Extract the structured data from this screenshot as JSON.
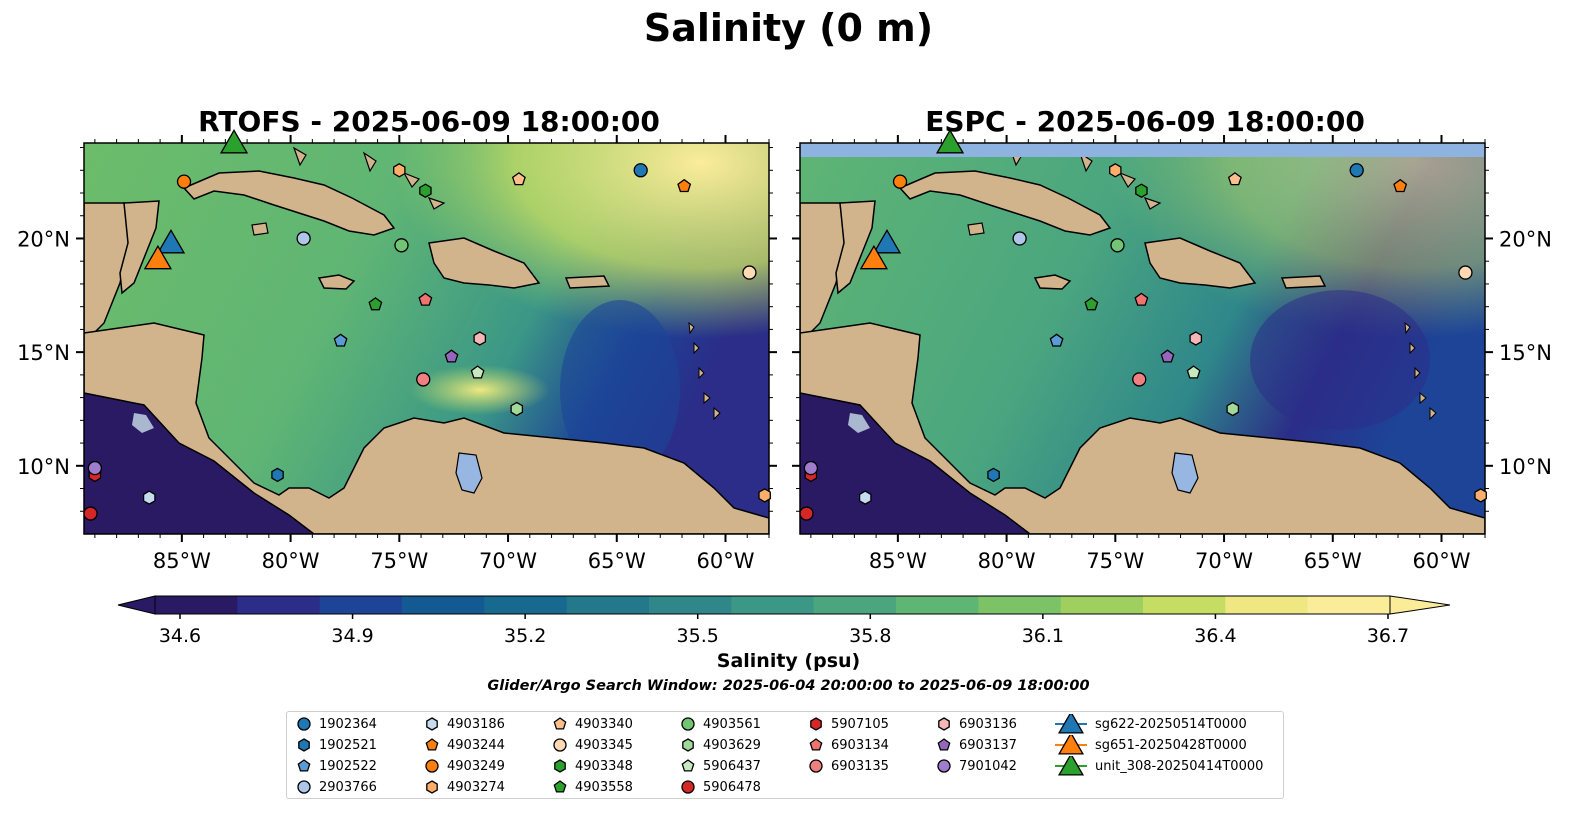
{
  "figure": {
    "suptitle": "Salinity (0 m)",
    "panels": [
      {
        "title": "RTOFS - 2025-06-09 18:00:00",
        "model": "RTOFS"
      },
      {
        "title": "ESPC - 2025-06-09 18:00:00",
        "model": "ESPC"
      }
    ],
    "lon_ticks": [
      "85°W",
      "80°W",
      "75°W",
      "70°W",
      "65°W",
      "60°W"
    ],
    "lat_ticks": [
      "20°N",
      "15°N",
      "10°N"
    ],
    "colorbar": {
      "label": "Salinity (psu)",
      "ticks": [
        "34.6",
        "34.9",
        "35.2",
        "35.5",
        "35.8",
        "36.1",
        "36.4",
        "36.7"
      ],
      "vmin": 34.6,
      "vmax": 36.7,
      "colormap": "haline",
      "colors": [
        "#2a1a64",
        "#2b2d88",
        "#1d4497",
        "#145a92",
        "#17698f",
        "#23788c",
        "#2f878a",
        "#3b9786",
        "#4ba67f",
        "#5fb574",
        "#7cc267",
        "#9fcf5f",
        "#c5dd63",
        "#efe882",
        "#fbec9a"
      ],
      "extend": "both"
    },
    "search_window": "Glider/Argo Search Window: 2025-06-04 20:00:00 to 2025-06-09 18:00:00",
    "colors": {
      "land": "#d2b48c",
      "lakes": "#97b6e1",
      "rivers": "#a9b8cf",
      "ocean_fill_espc_top": "#8eb3e0"
    }
  },
  "legend": {
    "columns": [
      [
        {
          "label": "1902364",
          "marker": "circle",
          "color": "#1f77b4"
        },
        {
          "label": "1902521",
          "marker": "hexagon",
          "color": "#1f77b4"
        },
        {
          "label": "1902522",
          "marker": "pentagon",
          "color": "#5b9bd5"
        },
        {
          "label": "2903766",
          "marker": "circle",
          "color": "#aec7e8"
        }
      ],
      [
        {
          "label": "4903186",
          "marker": "hexagon",
          "color": "#c6dbef"
        },
        {
          "label": "4903244",
          "marker": "pentagon",
          "color": "#ff7f0e"
        },
        {
          "label": "4903249",
          "marker": "circle",
          "color": "#ff7f0e"
        },
        {
          "label": "4903274",
          "marker": "hexagon",
          "color": "#fdae6b"
        }
      ],
      [
        {
          "label": "4903340",
          "marker": "pentagon",
          "color": "#fdc08c"
        },
        {
          "label": "4903345",
          "marker": "circle",
          "color": "#fdd9b5"
        },
        {
          "label": "4903348",
          "marker": "hexagon",
          "color": "#2ca02c"
        },
        {
          "label": "4903558",
          "marker": "pentagon",
          "color": "#2ca02c"
        }
      ],
      [
        {
          "label": "4903561",
          "marker": "circle",
          "color": "#74c476"
        },
        {
          "label": "4903629",
          "marker": "hexagon",
          "color": "#a1d99b"
        },
        {
          "label": "5906437",
          "marker": "pentagon",
          "color": "#c7e9c0"
        },
        {
          "label": "5906478",
          "marker": "circle",
          "color": "#d62728"
        }
      ],
      [
        {
          "label": "5907105",
          "marker": "hexagon",
          "color": "#d62728"
        },
        {
          "label": "6903134",
          "marker": "pentagon",
          "color": "#f0736f"
        },
        {
          "label": "6903135",
          "marker": "circle",
          "color": "#f08080"
        }
      ],
      [
        {
          "label": "6903136",
          "marker": "hexagon",
          "color": "#f4b6b6"
        },
        {
          "label": "6903137",
          "marker": "pentagon",
          "color": "#9467bd"
        },
        {
          "label": "7901042",
          "marker": "circle",
          "color": "#a07ccf"
        }
      ],
      [
        {
          "label": "sg622-20250514T0000",
          "marker": "triangle",
          "color": "#1f77b4"
        },
        {
          "label": "sg651-20250428T0000",
          "marker": "triangle",
          "color": "#ff7f0e"
        },
        {
          "label": "unit_308-20250414T0000",
          "marker": "triangle",
          "color": "#2ca02c"
        }
      ]
    ]
  },
  "map_extent": {
    "lon_min": -89.5,
    "lon_max": -58.0,
    "lat_min": 7.0,
    "lat_max": 24.2
  },
  "observations": [
    {
      "id": "1902364",
      "lon": -63.9,
      "lat": 23.0
    },
    {
      "id": "1902521",
      "lon": -80.6,
      "lat": 9.6
    },
    {
      "id": "1902522",
      "lon": -77.7,
      "lat": 15.5
    },
    {
      "id": "2903766",
      "lon": -79.4,
      "lat": 20.0
    },
    {
      "id": "4903186",
      "lon": -86.5,
      "lat": 8.6
    },
    {
      "id": "4903244",
      "lon": -61.9,
      "lat": 22.3
    },
    {
      "id": "4903249",
      "lon": -84.9,
      "lat": 22.5
    },
    {
      "id": "4903274",
      "lon": -75.0,
      "lat": 23.0
    },
    {
      "id": "4903340",
      "lon": -69.5,
      "lat": 22.6
    },
    {
      "id": "4903345",
      "lon": -58.9,
      "lat": 18.5
    },
    {
      "id": "4903348",
      "lon": -73.8,
      "lat": 22.1
    },
    {
      "id": "4903558",
      "lon": -76.1,
      "lat": 17.1
    },
    {
      "id": "4903561",
      "lon": -74.9,
      "lat": 19.7
    },
    {
      "id": "4903629",
      "lon": -69.6,
      "lat": 12.5
    },
    {
      "id": "5906437",
      "lon": -71.4,
      "lat": 14.1
    },
    {
      "id": "5906478",
      "lon": -89.2,
      "lat": 7.9
    },
    {
      "id": "5907105",
      "lon": -89.0,
      "lat": 9.6
    },
    {
      "id": "6903134",
      "lon": -73.8,
      "lat": 17.3
    },
    {
      "id": "6903135",
      "lon": -73.9,
      "lat": 13.8
    },
    {
      "id": "6903136",
      "lon": -71.3,
      "lat": 15.6
    },
    {
      "id": "6903137",
      "lon": -72.6,
      "lat": 14.8
    },
    {
      "id": "7901042",
      "lon": -89.0,
      "lat": 9.9
    },
    {
      "id": "4903274",
      "lon": -58.2,
      "lat": 8.7
    },
    {
      "id": "sg622-20250514T0000",
      "lon": -85.5,
      "lat": 19.7
    },
    {
      "id": "sg651-20250428T0000",
      "lon": -86.1,
      "lat": 19.0
    },
    {
      "id": "unit_308-20250414T0000",
      "lon": -82.6,
      "lat": 24.1
    }
  ]
}
